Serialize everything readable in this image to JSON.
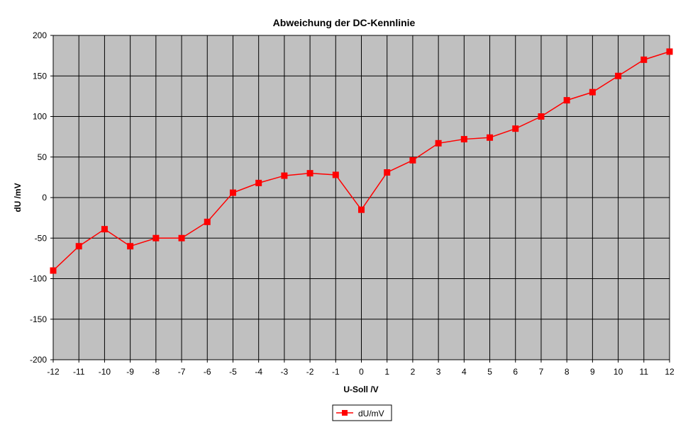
{
  "chart_data": {
    "type": "line",
    "title": "Abweichung der DC-Kennlinie",
    "xlabel": "U-Soll /V",
    "ylabel": "dU /mV",
    "xlim": [
      -12,
      12
    ],
    "ylim": [
      -200,
      200
    ],
    "y_ticks": [
      200,
      150,
      100,
      50,
      0,
      -50,
      -100,
      -150,
      -200
    ],
    "x_ticks": [
      -12,
      -11,
      -10,
      -9,
      -8,
      -7,
      -6,
      -5,
      -4,
      -3,
      -2,
      -1,
      0,
      1,
      2,
      3,
      4,
      5,
      6,
      7,
      8,
      9,
      10,
      11,
      12
    ],
    "grid": true,
    "legend_position": "bottom-center",
    "plot_background": "#c0c0c0",
    "series": [
      {
        "name": "dU/mV",
        "color": "#ff0000",
        "marker": "square",
        "x": [
          -12,
          -11,
          -10,
          -9,
          -8,
          -7,
          -6,
          -5,
          -4,
          -3,
          -2,
          -1,
          0,
          1,
          2,
          3,
          4,
          5,
          6,
          7,
          8,
          9,
          10,
          11,
          12
        ],
        "y": [
          -90,
          -60,
          -39,
          -60,
          -50,
          -50,
          -30,
          6,
          18,
          27,
          30,
          28,
          -15,
          31,
          46,
          67,
          72,
          74,
          85,
          100,
          120,
          130,
          150,
          170,
          180
        ]
      }
    ]
  }
}
